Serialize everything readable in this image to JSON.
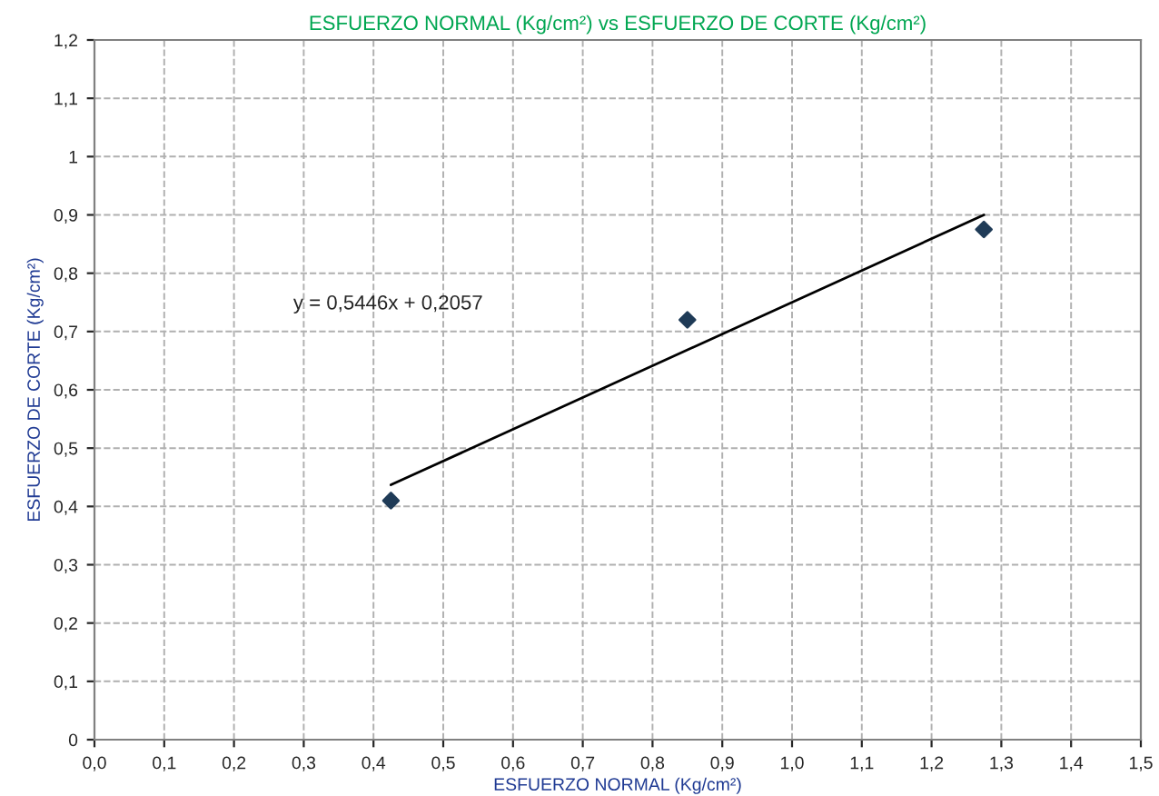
{
  "chart_data": {
    "type": "scatter",
    "title": "ESFUERZO NORMAL (Kg/cm²) vs ESFUERZO DE CORTE (Kg/cm²)",
    "xlabel": "ESFUERZO NORMAL (Kg/cm²)",
    "ylabel": "ESFUERZO DE CORTE (Kg/cm²)",
    "series": [
      {
        "type": "scatter",
        "color": "#1f3b57",
        "marker": "diamond",
        "x": [
          0.425,
          0.85,
          1.275
        ],
        "values": [
          0.41,
          0.72,
          0.875
        ]
      },
      {
        "type": "line",
        "color": "#000000",
        "marker": "none",
        "line_style": "solid",
        "x": [
          0.425,
          1.275
        ],
        "values": [
          0.437,
          0.9
        ]
      }
    ],
    "annotations": [
      "y = 0,5446x + 0,2057"
    ],
    "xlim": [
      0,
      1.5
    ],
    "ylim": [
      0,
      1.2
    ],
    "xticks": [
      {
        "value": 0,
        "label": "0,0"
      },
      {
        "value": 0.1,
        "label": "0,1"
      },
      {
        "value": 0.2,
        "label": "0,2"
      },
      {
        "value": 0.3,
        "label": "0,3"
      },
      {
        "value": 0.4,
        "label": "0,4"
      },
      {
        "value": 0.5,
        "label": "0,5"
      },
      {
        "value": 0.6,
        "label": "0,6"
      },
      {
        "value": 0.7,
        "label": "0,7"
      },
      {
        "value": 0.8,
        "label": "0,8"
      },
      {
        "value": 0.9,
        "label": "0,9"
      },
      {
        "value": 1.0,
        "label": "1,0"
      },
      {
        "value": 1.1,
        "label": "1,1"
      },
      {
        "value": 1.2,
        "label": "1,2"
      },
      {
        "value": 1.3,
        "label": "1,3"
      },
      {
        "value": 1.4,
        "label": "1,4"
      },
      {
        "value": 1.5,
        "label": "1,5"
      }
    ],
    "yticks": [
      0,
      {
        "value": 0.1,
        "label": "0,1"
      },
      {
        "value": 0.2,
        "label": "0,2"
      },
      {
        "value": 0.3,
        "label": "0,3"
      },
      {
        "value": 0.4,
        "label": "0,4"
      },
      {
        "value": 0.5,
        "label": "0,5"
      },
      {
        "value": 0.6,
        "label": "0,6"
      },
      {
        "value": 0.7,
        "label": "0,7"
      },
      {
        "value": 0.8,
        "label": "0,8"
      },
      {
        "value": 0.9,
        "label": "0,9"
      },
      1,
      {
        "value": 1.1,
        "label": "1,1"
      },
      {
        "value": 1.2,
        "label": "1,2"
      }
    ],
    "grid": true,
    "legend": false
  }
}
